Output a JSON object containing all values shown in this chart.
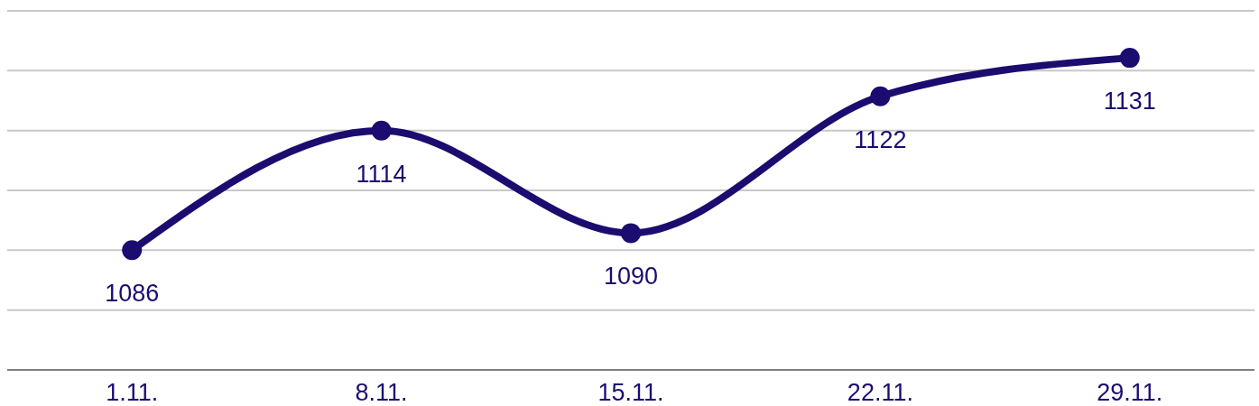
{
  "chart_data": {
    "type": "line",
    "categories": [
      "1.11.",
      "8.11.",
      "15.11.",
      "22.11.",
      "29.11."
    ],
    "values": [
      1086,
      1114,
      1090,
      1122,
      1131
    ],
    "color": "#1b0c70",
    "ylim": [
      1058,
      1142
    ],
    "yticks": [
      {
        "value": 1058,
        "label": null
      },
      {
        "value": 1072,
        "label": null
      },
      {
        "value": 1086,
        "label": null
      },
      {
        "value": 1100,
        "label": null
      },
      {
        "value": 1114,
        "label": null
      },
      {
        "value": 1128,
        "label": null
      },
      {
        "value": 1142,
        "label": null
      }
    ],
    "grid": "y",
    "tick_labels": "x",
    "marker": "circle",
    "data_labels": true
  }
}
